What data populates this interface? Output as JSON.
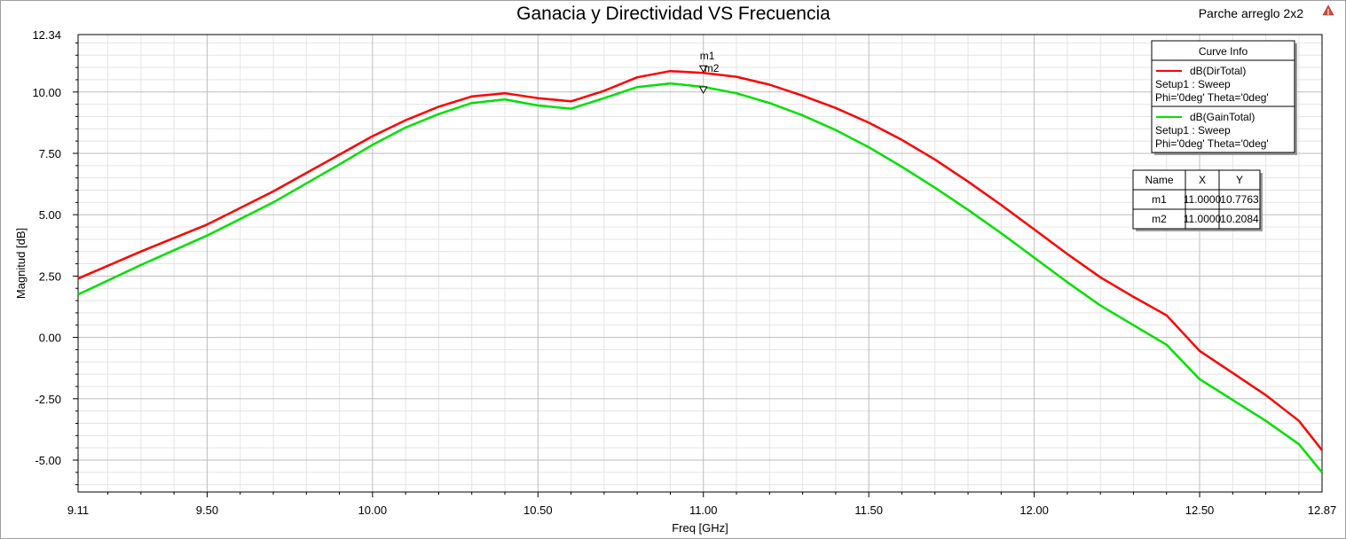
{
  "corner_label": "Parche arreglo 2x2",
  "icon": "ansys-logo-icon",
  "chart_data": {
    "type": "line",
    "title": "Ganacia y Directividad VS Frecuencia",
    "xlabel": "Freq [GHz]",
    "ylabel": "Magnitud [dB]",
    "xlim": [
      9.11,
      12.87
    ],
    "ylim": [
      -6.3,
      12.34
    ],
    "x_ticks": [
      "9.11",
      "9.50",
      "10.00",
      "10.50",
      "11.00",
      "11.50",
      "12.00",
      "12.50",
      "12.87"
    ],
    "y_ticks": [
      "12.34",
      "10.00",
      "7.50",
      "5.00",
      "2.50",
      "0.00",
      "-2.50",
      "-5.00"
    ],
    "grid": true,
    "series": [
      {
        "name": "dB(DirTotal)",
        "setup": "Setup1 : Sweep",
        "params": "Phi='0deg' Theta='0deg'",
        "color": "#ff0000",
        "x": [
          9.11,
          9.3,
          9.5,
          9.7,
          9.9,
          10.0,
          10.1,
          10.2,
          10.3,
          10.4,
          10.5,
          10.6,
          10.7,
          10.8,
          10.9,
          11.0,
          11.1,
          11.2,
          11.3,
          11.4,
          11.5,
          11.6,
          11.7,
          11.8,
          11.9,
          12.0,
          12.1,
          12.2,
          12.3,
          12.4,
          12.5,
          12.6,
          12.7,
          12.8,
          12.87
        ],
        "y": [
          2.4,
          3.5,
          4.6,
          5.95,
          7.45,
          8.2,
          8.85,
          9.4,
          9.82,
          9.95,
          9.75,
          9.62,
          10.05,
          10.6,
          10.85,
          10.78,
          10.62,
          10.3,
          9.85,
          9.35,
          8.75,
          8.05,
          7.25,
          6.35,
          5.4,
          4.4,
          3.4,
          2.45,
          1.65,
          0.9,
          -0.55,
          -1.45,
          -2.35,
          -3.4,
          -4.6
        ]
      },
      {
        "name": "dB(GainTotal)",
        "setup": "Setup1 : Sweep",
        "params": "Phi='0deg' Theta='0deg'",
        "color": "#00e000",
        "x": [
          9.11,
          9.3,
          9.5,
          9.7,
          9.9,
          10.0,
          10.1,
          10.2,
          10.3,
          10.4,
          10.5,
          10.6,
          10.7,
          10.8,
          10.9,
          11.0,
          11.1,
          11.2,
          11.3,
          11.4,
          11.5,
          11.6,
          11.7,
          11.8,
          11.9,
          12.0,
          12.1,
          12.2,
          12.3,
          12.4,
          12.5,
          12.6,
          12.7,
          12.8,
          12.87
        ],
        "y": [
          1.75,
          2.95,
          4.15,
          5.5,
          7.05,
          7.85,
          8.55,
          9.1,
          9.55,
          9.7,
          9.45,
          9.32,
          9.75,
          10.2,
          10.35,
          10.21,
          9.95,
          9.55,
          9.05,
          8.45,
          7.75,
          6.95,
          6.1,
          5.2,
          4.25,
          3.25,
          2.25,
          1.3,
          0.5,
          -0.3,
          -1.7,
          -2.55,
          -3.4,
          -4.35,
          -5.5
        ]
      }
    ],
    "legend": {
      "title": "Curve Info",
      "placement": "top-right"
    },
    "markers": {
      "headers": [
        "Name",
        "X",
        "Y"
      ],
      "rows": [
        {
          "name": "m1",
          "x": "11.0000",
          "y": "10.7763",
          "xv": 11.0,
          "yv": 10.7763
        },
        {
          "name": "m2",
          "x": "11.0000",
          "y": "10.2084",
          "xv": 11.0,
          "yv": 10.2084
        }
      ]
    }
  }
}
